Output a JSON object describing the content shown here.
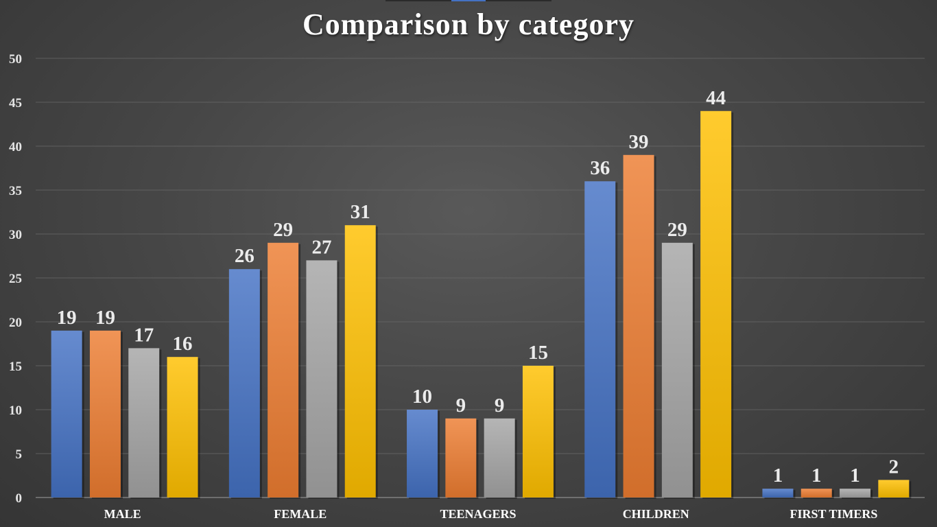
{
  "title": "Comparison by category",
  "chart_data": {
    "type": "bar",
    "title": "Comparison by category",
    "xlabel": "",
    "ylabel": "",
    "categories": [
      "MALE",
      "FEMALE",
      "TEENAGERS",
      "CHILDREN",
      "FIRST TIMERS"
    ],
    "series": [
      {
        "color": "#4472c4",
        "values": [
          19,
          26,
          10,
          36,
          1
        ]
      },
      {
        "color": "#ed7d31",
        "values": [
          19,
          29,
          9,
          39,
          1
        ]
      },
      {
        "color": "#a5a5a5",
        "values": [
          17,
          27,
          9,
          29,
          1
        ]
      },
      {
        "color": "#ffc000",
        "values": [
          16,
          31,
          15,
          44,
          2
        ]
      }
    ],
    "ylim": [
      0,
      50
    ],
    "yticks": [
      0,
      5,
      10,
      15,
      20,
      25,
      30,
      35,
      40,
      45,
      50
    ],
    "grid": true,
    "legend": "none",
    "data_labels": true
  }
}
